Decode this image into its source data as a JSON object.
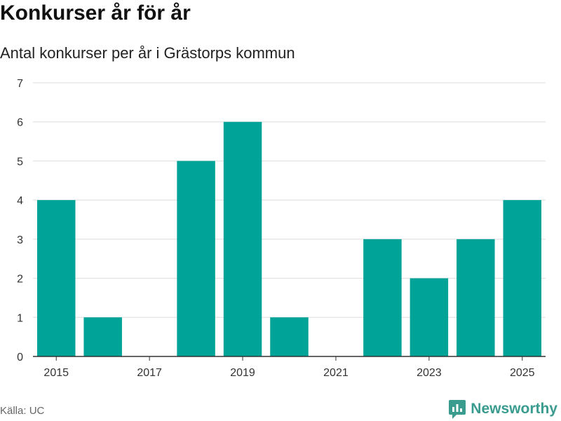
{
  "title": "Konkurser år för år",
  "subtitle": "Antal konkurser per år i Grästorps kommun",
  "source": "Källa: UC",
  "brand": "Newsworthy",
  "colors": {
    "bar": "#00a398",
    "grid": "#dddddd",
    "axis": "#333333",
    "brand": "#3a9b8f"
  },
  "chart_data": {
    "type": "bar",
    "title": "Konkurser år för år",
    "subtitle": "Antal konkurser per år i Grästorps kommun",
    "categories": [
      "2015",
      "2016",
      "2017",
      "2018",
      "2019",
      "2020",
      "2021",
      "2022",
      "2023",
      "2024",
      "2025"
    ],
    "values": [
      4,
      1,
      0,
      5,
      6,
      1,
      0,
      3,
      2,
      3,
      4
    ],
    "x_tick_labels": [
      "2015",
      "2017",
      "2019",
      "2021",
      "2023",
      "2025"
    ],
    "y_ticks": [
      0,
      1,
      2,
      3,
      4,
      5,
      6,
      7
    ],
    "ylim": [
      0,
      7
    ],
    "xlabel": "",
    "ylabel": "",
    "grid": true
  }
}
